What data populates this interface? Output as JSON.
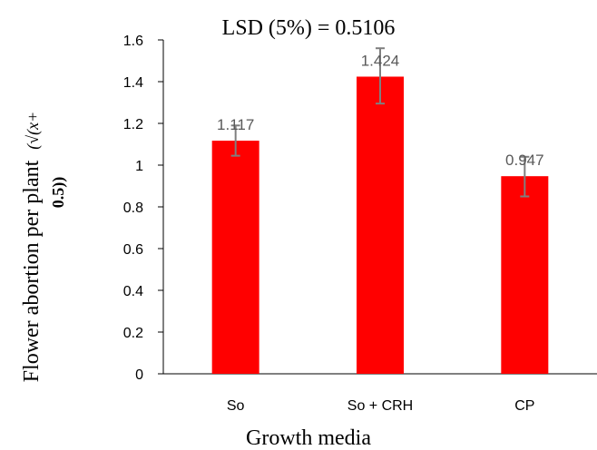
{
  "chart_data": {
    "type": "bar",
    "title": "LSD (5%) = 0.5106",
    "xlabel": "Growth media",
    "ylabel_main": "Flower abortion per plant",
    "ylabel_formula_line1": "(√(x+",
    "ylabel_formula_line2": "0.5))",
    "categories": [
      "So",
      "So + CRH",
      "CP"
    ],
    "values": [
      1.117,
      1.424,
      0.947
    ],
    "data_labels": [
      "1.117",
      "1.424",
      "0.947"
    ],
    "error_bars": [
      {
        "low": 1.045,
        "high": 1.19
      },
      {
        "low": 1.295,
        "high": 1.56
      },
      {
        "low": 0.85,
        "high": 1.04
      }
    ],
    "ylim": [
      0,
      1.6
    ],
    "yticks": [
      0,
      0.2,
      0.4,
      0.6,
      0.8,
      1,
      1.2,
      1.4,
      1.6
    ],
    "ytick_labels": [
      "0",
      "0.2",
      "0.4",
      "0.6",
      "0.8",
      "1",
      "1.2",
      "1.4",
      "1.6"
    ],
    "grid": false,
    "legend": "none",
    "colors": {
      "bar": "#ff0000",
      "error_bar": "#7f7f7f",
      "axis": "#000000",
      "data_label": "#595959"
    }
  }
}
